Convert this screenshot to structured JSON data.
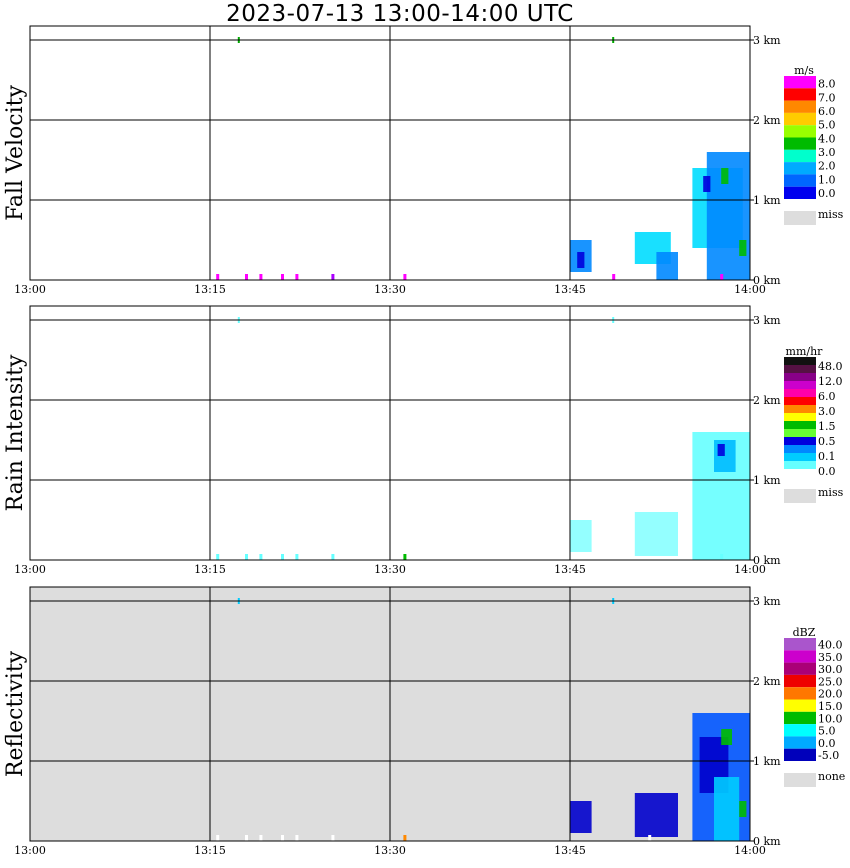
{
  "title": "2023-07-13   13:00-14:00 UTC",
  "chart_data": [
    {
      "type": "heatmap",
      "panel": "Fall Velocity",
      "ylabel": "Fall Velocity",
      "x_ticks": [
        "13:00",
        "13:15",
        "13:30",
        "13:45",
        "14:00"
      ],
      "y_ticks": [
        "0 km",
        "1 km",
        "2 km",
        "3 km"
      ],
      "xlim": [
        "13:00",
        "14:00"
      ],
      "ylim_km": [
        0,
        3.2
      ],
      "background": "#ffffff",
      "legend": {
        "unit": "m/s",
        "labels": [
          "8.0",
          "7.0",
          "6.0",
          "5.0",
          "4.0",
          "3.0",
          "2.0",
          "1.0",
          "0.0"
        ],
        "colors": [
          "#ff00ff",
          "#ff0000",
          "#ff8800",
          "#ffcc00",
          "#99ff00",
          "#00bb00",
          "#00ffcc",
          "#00aaff",
          "#0066ff",
          "#0000ee"
        ],
        "missing_label": "miss",
        "missing_color": "#dddddd"
      },
      "echoes": [
        {
          "t0": 13.75,
          "t1": 13.78,
          "h0": 0.1,
          "h1": 0.5,
          "color": "#0088ff"
        },
        {
          "t0": 13.76,
          "t1": 13.77,
          "h0": 0.15,
          "h1": 0.35,
          "color": "#0000dd"
        },
        {
          "t0": 13.84,
          "t1": 13.89,
          "h0": 0.2,
          "h1": 0.6,
          "color": "#00ddff"
        },
        {
          "t0": 13.87,
          "t1": 13.9,
          "h0": 0.0,
          "h1": 0.35,
          "color": "#0088ff"
        },
        {
          "t0": 13.92,
          "t1": 13.99,
          "h0": 0.4,
          "h1": 1.4,
          "color": "#00ddff"
        },
        {
          "t0": 13.94,
          "t1": 14.0,
          "h0": 0.0,
          "h1": 1.6,
          "color": "#0088ff"
        },
        {
          "t0": 13.96,
          "t1": 13.97,
          "h0": 1.2,
          "h1": 1.4,
          "color": "#00bb00"
        },
        {
          "t0": 13.985,
          "t1": 13.995,
          "h0": 0.3,
          "h1": 0.5,
          "color": "#00bb00"
        },
        {
          "t0": 13.935,
          "t1": 13.945,
          "h0": 1.1,
          "h1": 1.3,
          "color": "#0000dd"
        }
      ],
      "ground_marks": [
        {
          "t": 13.26,
          "color": "#ff00ff"
        },
        {
          "t": 13.3,
          "color": "#ff00ff"
        },
        {
          "t": 13.32,
          "color": "#ff00ff"
        },
        {
          "t": 13.35,
          "color": "#ff00ff"
        },
        {
          "t": 13.37,
          "color": "#ff00ff"
        },
        {
          "t": 13.42,
          "color": "#aa00ff"
        },
        {
          "t": 13.52,
          "color": "#ff00ff"
        },
        {
          "t": 13.81,
          "color": "#ff00ff"
        },
        {
          "t": 13.96,
          "color": "#ff00ff"
        }
      ],
      "top_marks": [
        {
          "t": 13.29,
          "color": "#00aa00"
        },
        {
          "t": 13.81,
          "color": "#00aa00"
        }
      ]
    },
    {
      "type": "heatmap",
      "panel": "Rain Intensity",
      "ylabel": "Rain Intensity",
      "x_ticks": [
        "13:00",
        "13:15",
        "13:30",
        "13:45",
        "14:00"
      ],
      "y_ticks": [
        "0 km",
        "1 km",
        "2 km",
        "3 km"
      ],
      "xlim": [
        "13:00",
        "14:00"
      ],
      "ylim_km": [
        0,
        3.2
      ],
      "background": "#ffffff",
      "legend": {
        "unit": "mm/hr",
        "labels": [
          "48.0",
          "12.0",
          "6.0",
          "3.0",
          "1.5",
          "0.5",
          "0.1",
          "0.0"
        ],
        "colors": [
          "#111111",
          "#551144",
          "#880088",
          "#cc00cc",
          "#ff00aa",
          "#ff0000",
          "#ff8800",
          "#ffff00",
          "#00bb00",
          "#66ff33",
          "#0000dd",
          "#0088ff",
          "#00ccff",
          "#66ffff",
          "#ffffff"
        ],
        "missing_label": "miss",
        "missing_color": "#dddddd"
      },
      "echoes": [
        {
          "t0": 13.75,
          "t1": 13.78,
          "h0": 0.1,
          "h1": 0.5,
          "color": "#88ffff"
        },
        {
          "t0": 13.84,
          "t1": 13.9,
          "h0": 0.05,
          "h1": 0.6,
          "color": "#88ffff"
        },
        {
          "t0": 13.92,
          "t1": 14.0,
          "h0": 0.0,
          "h1": 1.6,
          "color": "#66ffff"
        },
        {
          "t0": 13.95,
          "t1": 13.98,
          "h0": 1.1,
          "h1": 1.5,
          "color": "#00bbff"
        },
        {
          "t0": 13.955,
          "t1": 13.965,
          "h0": 1.3,
          "h1": 1.45,
          "color": "#0000dd"
        }
      ],
      "ground_marks": [
        {
          "t": 13.26,
          "color": "#66ffff"
        },
        {
          "t": 13.3,
          "color": "#66ffff"
        },
        {
          "t": 13.32,
          "color": "#66ffff"
        },
        {
          "t": 13.35,
          "color": "#66ffff"
        },
        {
          "t": 13.37,
          "color": "#66ffff"
        },
        {
          "t": 13.42,
          "color": "#66ffff"
        },
        {
          "t": 13.52,
          "color": "#00bb00"
        },
        {
          "t": 13.96,
          "color": "#66ffff"
        }
      ],
      "top_marks": [
        {
          "t": 13.29,
          "color": "#66ffff"
        },
        {
          "t": 13.81,
          "color": "#66ffff"
        }
      ]
    },
    {
      "type": "heatmap",
      "panel": "Reflectivity",
      "ylabel": "Reflectivity",
      "x_ticks": [
        "13:00",
        "13:15",
        "13:30",
        "13:45",
        "14:00"
      ],
      "y_ticks": [
        "0 km",
        "1 km",
        "2 km",
        "3 km"
      ],
      "xlim": [
        "13:00",
        "14:00"
      ],
      "ylim_km": [
        0,
        3.2
      ],
      "background": "#dddddd",
      "legend": {
        "unit": "dBZ",
        "labels": [
          "40.0",
          "35.0",
          "30.0",
          "25.0",
          "20.0",
          "15.0",
          "10.0",
          "5.0",
          "0.0",
          "-5.0"
        ],
        "colors": [
          "#aa55cc",
          "#cc00cc",
          "#aa0077",
          "#ee0000",
          "#ff7700",
          "#ffff00",
          "#00bb00",
          "#00ffff",
          "#00aaff",
          "#0000bb"
        ],
        "missing_label": "none",
        "missing_color": "#dddddd"
      },
      "echoes": [
        {
          "t0": 13.75,
          "t1": 13.78,
          "h0": 0.1,
          "h1": 0.5,
          "color": "#0000cc"
        },
        {
          "t0": 13.84,
          "t1": 13.9,
          "h0": 0.05,
          "h1": 0.6,
          "color": "#0000cc"
        },
        {
          "t0": 13.92,
          "t1": 14.0,
          "h0": 0.0,
          "h1": 1.6,
          "color": "#0055ff"
        },
        {
          "t0": 13.93,
          "t1": 13.97,
          "h0": 0.6,
          "h1": 1.3,
          "color": "#0000cc"
        },
        {
          "t0": 13.95,
          "t1": 13.985,
          "h0": 0.0,
          "h1": 0.8,
          "color": "#00ccff"
        },
        {
          "t0": 13.96,
          "t1": 13.975,
          "h0": 1.2,
          "h1": 1.4,
          "color": "#00bb00"
        },
        {
          "t0": 13.985,
          "t1": 13.995,
          "h0": 0.3,
          "h1": 0.5,
          "color": "#00bb00"
        }
      ],
      "ground_marks": [
        {
          "t": 13.26,
          "color": "#ffffff"
        },
        {
          "t": 13.3,
          "color": "#ffffff"
        },
        {
          "t": 13.32,
          "color": "#ffffff"
        },
        {
          "t": 13.35,
          "color": "#ffffff"
        },
        {
          "t": 13.37,
          "color": "#ffffff"
        },
        {
          "t": 13.42,
          "color": "#ffffff"
        },
        {
          "t": 13.52,
          "color": "#ff8800"
        },
        {
          "t": 13.86,
          "color": "#ffffff"
        }
      ],
      "top_marks": [
        {
          "t": 13.29,
          "color": "#00ccff"
        },
        {
          "t": 13.81,
          "color": "#00ccff"
        }
      ]
    }
  ]
}
